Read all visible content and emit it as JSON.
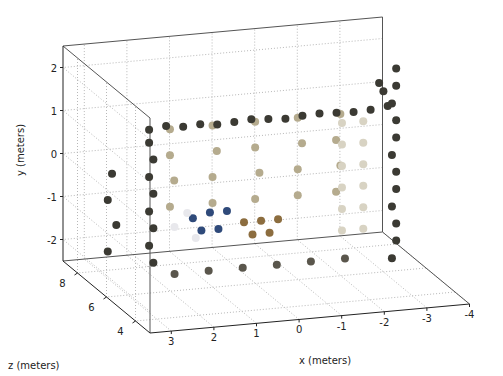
{
  "chart_data": {
    "type": "scatter3d",
    "xlabel": "x (meters)",
    "ylabel": "y (meters)",
    "zlabel": "z (meters)",
    "xlim": [
      -4,
      3.5
    ],
    "ylim": [
      -2.5,
      2.5
    ],
    "zlim": [
      3,
      9
    ],
    "xticks": [
      3,
      2,
      1,
      0,
      -1,
      -2,
      -3,
      -4
    ],
    "yticks": [
      -2,
      -1,
      0,
      1,
      2
    ],
    "zticks": [
      4,
      6,
      8
    ],
    "grid": true,
    "series": [
      {
        "color": "#b5ab8e",
        "marker": "circle",
        "x": [
          -2.5,
          -1.5,
          -0.5,
          0.5,
          1.5,
          -2.4,
          -1.6,
          -0.5,
          0.4,
          1.5,
          -2.5,
          -1.5,
          -0.6,
          0.5,
          1.4,
          -2.4,
          -1.5,
          -0.5,
          0.5,
          1.5
        ],
        "y": [
          0.8,
          0.8,
          0.8,
          0.8,
          0.8,
          0.2,
          0.2,
          0.2,
          0.2,
          0.2,
          -0.4,
          -0.4,
          -0.4,
          -0.4,
          -0.4,
          -1.0,
          -1.0,
          -1.0,
          -1.0,
          -1.0
        ],
        "z": [
          7.5,
          7.5,
          7.5,
          7.5,
          7.5,
          7.5,
          7.5,
          7.5,
          7.5,
          7.5,
          7.5,
          7.5,
          7.5,
          7.5,
          7.5,
          7.5,
          7.5,
          7.5,
          7.5,
          7.5
        ]
      },
      {
        "color": "#d8d3c3",
        "marker": "circle",
        "x": [
          -2.8,
          -2.8,
          -2.8,
          -2.8,
          -2.8,
          -2.8,
          -2.3,
          -2.3,
          -2.3,
          -2.3,
          -2.3,
          -2.3
        ],
        "y": [
          0.8,
          0.3,
          -0.2,
          -0.7,
          -1.2,
          -1.7,
          0.8,
          0.3,
          -0.2,
          -0.7,
          -1.2,
          -1.7
        ],
        "z": [
          6.8,
          6.8,
          6.8,
          6.8,
          6.8,
          6.8,
          6.8,
          6.8,
          6.8,
          6.8,
          6.8,
          6.8
        ]
      },
      {
        "color": "#5a564c",
        "marker": "circle",
        "x": [
          1.8,
          1.0,
          0.2,
          -0.6,
          -1.4,
          -2.2
        ],
        "y": [
          -2.2,
          -2.2,
          -2.2,
          -2.2,
          -2.2,
          -2.2
        ],
        "z": [
          6.3,
          6.3,
          6.3,
          6.3,
          6.3,
          6.3
        ]
      },
      {
        "color": "#8c6d3f",
        "marker": "circle",
        "x": [
          -0.8,
          -0.4,
          0.0,
          -0.6,
          -0.2
        ],
        "y": [
          -1.3,
          -1.3,
          -1.3,
          -1.6,
          -1.6
        ],
        "z": [
          6.8,
          6.8,
          6.8,
          6.8,
          6.8
        ]
      },
      {
        "color": "#2f4a7a",
        "marker": "circle",
        "x": [
          0.4,
          0.8,
          1.2,
          0.6,
          1.0
        ],
        "y": [
          -1.0,
          -1.0,
          -1.1,
          -1.4,
          -1.4
        ],
        "z": [
          6.8,
          6.8,
          6.8,
          6.8,
          6.8
        ]
      },
      {
        "color": "#e8e8ec",
        "marker": "circle",
        "x": [
          1.4,
          1.7,
          1.2
        ],
        "y": [
          -0.9,
          -1.2,
          -1.5
        ],
        "z": [
          6.6,
          6.6,
          6.6
        ]
      },
      {
        "color": "#3b3a33",
        "marker": "circle",
        "x": [
          2.5,
          2.1,
          1.7,
          1.3,
          0.9,
          0.5,
          0.1,
          -0.3,
          -0.7,
          -1.1,
          -1.5,
          -1.9,
          -2.3,
          -2.7,
          -3.1,
          2.5,
          2.4,
          2.5,
          2.4,
          2.5,
          2.4,
          2.5,
          2.4,
          -3.3,
          -3.3,
          -3.2,
          -3.3,
          -3.3,
          -3.2,
          -3.3,
          -3.3,
          -3.2,
          -3.3,
          -3.3,
          -3.2,
          3.2,
          3.3,
          3.1,
          3.3,
          -2.9,
          -3.0
        ],
        "y": [
          1.3,
          1.35,
          1.3,
          1.32,
          1.28,
          1.3,
          1.33,
          1.3,
          1.27,
          1.3,
          1.32,
          1.3,
          1.28,
          1.3,
          1.35,
          1.0,
          0.6,
          0.2,
          -0.2,
          -0.6,
          -1.0,
          -1.4,
          -1.8,
          2.2,
          1.8,
          1.4,
          1.0,
          0.6,
          0.2,
          -0.2,
          -0.6,
          -1.0,
          -1.4,
          -1.8,
          -2.2,
          0.2,
          -0.4,
          -1.0,
          -1.6,
          1.9,
          1.7
        ],
        "z": [
          6,
          6,
          6,
          6,
          6,
          6,
          6,
          6,
          6,
          6,
          6,
          6,
          6,
          6,
          6,
          6,
          6,
          6,
          6,
          6,
          6,
          6,
          6,
          6,
          6,
          6,
          6,
          6,
          6,
          6,
          6,
          6,
          6,
          6,
          6,
          6.5,
          6.5,
          6.5,
          6.5,
          6,
          6
        ]
      }
    ]
  }
}
